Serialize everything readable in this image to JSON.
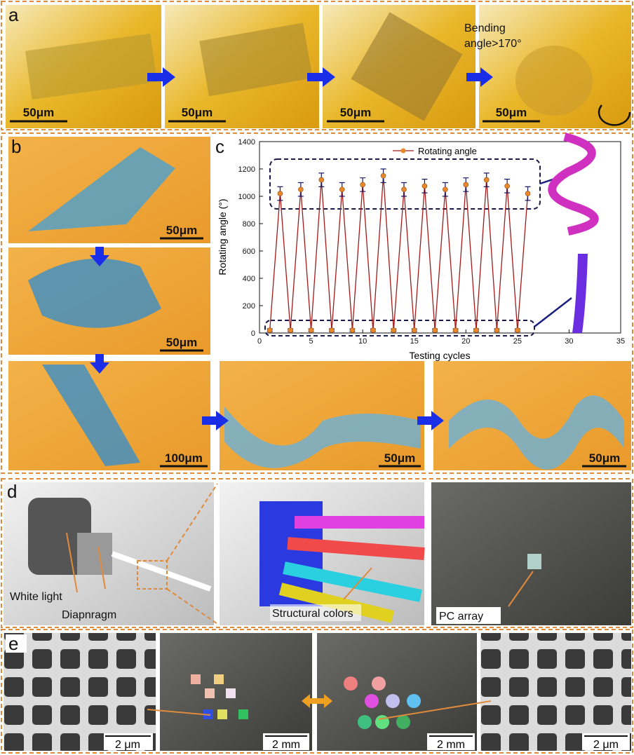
{
  "panels": {
    "a": {
      "label": "a",
      "scale_bars": [
        "50μm",
        "50μm",
        "50μm",
        "50μm"
      ],
      "annotation": "Bending angle>170°"
    },
    "b": {
      "label": "b",
      "scale_bars": [
        "50μm",
        "50μm",
        "100μm",
        "50μm",
        "50μm"
      ]
    },
    "c": {
      "label": "c"
    },
    "d": {
      "label": "d",
      "annotations": [
        "White light",
        "Diapnragm",
        "Structural colors",
        "PC array"
      ]
    },
    "e": {
      "label": "e",
      "scale_bars": [
        "2 μm",
        "2 mm",
        "2 mm",
        "2 μm"
      ]
    }
  },
  "chart_data": {
    "type": "line",
    "x_label": "Testing cycles",
    "y_label": "Rotating angle (°)",
    "x": [
      1,
      2,
      3,
      4,
      5,
      6,
      7,
      8,
      9,
      10,
      11,
      12,
      13,
      14,
      15,
      16,
      17,
      18,
      19,
      20,
      21,
      22,
      23,
      24,
      25,
      26
    ],
    "series": [
      {
        "name": "Rotating angle",
        "color": "#a01c1c",
        "marker_color": "#e8882a",
        "values": [
          20,
          1020,
          20,
          1050,
          20,
          1120,
          20,
          1050,
          20,
          1085,
          20,
          1150,
          20,
          1050,
          20,
          1075,
          20,
          1050,
          20,
          1085,
          20,
          1120,
          20,
          1075,
          20,
          1020
        ],
        "errors": [
          10,
          50,
          10,
          50,
          10,
          50,
          10,
          50,
          10,
          50,
          10,
          50,
          10,
          50,
          10,
          50,
          10,
          50,
          10,
          50,
          10,
          50,
          10,
          50,
          10,
          50
        ]
      }
    ],
    "xlim": [
      0,
      35
    ],
    "xticks": [
      0,
      5,
      10,
      15,
      20,
      25,
      30,
      35
    ],
    "ylim": [
      0,
      1400
    ],
    "yticks": [
      0,
      200,
      400,
      600,
      800,
      1000,
      1200,
      1400
    ],
    "legend": "top"
  }
}
